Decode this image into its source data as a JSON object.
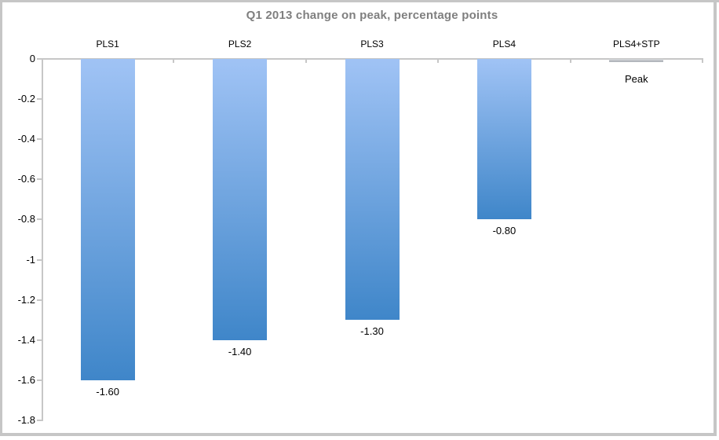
{
  "window": {
    "frame_color": "#c6c6c6",
    "background": "#ffffff"
  },
  "chart_data": {
    "type": "bar",
    "title": "Q1 2013 change on peak, percentage points",
    "categories": [
      "PLS1",
      "PLS2",
      "PLS3",
      "PLS4",
      "PLS4+STP"
    ],
    "values": [
      -1.6,
      -1.4,
      -1.3,
      -0.8,
      0.0
    ],
    "bar_labels": [
      "-1.60",
      "-1.40",
      "-1.30",
      "-0.80",
      "Peak"
    ],
    "ytick_labels": [
      "0",
      "-0.2",
      "-0.4",
      "-0.6",
      "-0.8",
      "-1",
      "-1.2",
      "-1.4",
      "-1.6",
      "-1.8"
    ],
    "ytick_values": [
      0,
      -0.2,
      -0.4,
      -0.6,
      -0.8,
      -1.0,
      -1.2,
      -1.4,
      -1.6,
      -1.8
    ],
    "ylim": [
      -1.8,
      0
    ],
    "xlabel": "",
    "ylabel": "",
    "grid": false,
    "legend": null,
    "category_axis_position": "top",
    "colors": {
      "bar_gradient_top": "#a0c3f5",
      "bar_gradient_bottom": "#3f86c9",
      "axis": "#c7c7c7",
      "title": "#7f7f7f",
      "labels": "#000000"
    }
  }
}
